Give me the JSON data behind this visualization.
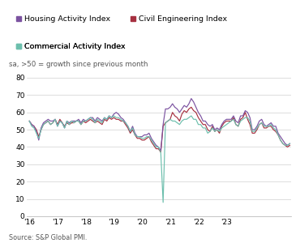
{
  "title": "",
  "subtitle": "sa, >50 = growth since previous month",
  "source": "Source: S&P Global PMI.",
  "legend": [
    {
      "label": "Housing Activity Index",
      "color": "#7B52A0"
    },
    {
      "label": "Civil Engineering Index",
      "color": "#A63040"
    },
    {
      "label": "Commercial Activity Index",
      "color": "#6DBFAD"
    }
  ],
  "ylim": [
    0,
    80
  ],
  "yticks": [
    0,
    10,
    20,
    30,
    40,
    50,
    60,
    70,
    80
  ],
  "xtick_labels": [
    "'16",
    "'17",
    "'18",
    "'19",
    "'20",
    "'21",
    "'22",
    "'23"
  ],
  "housing": [
    55,
    53,
    52,
    49,
    44,
    51,
    54,
    55,
    56,
    55,
    55,
    56,
    52,
    55,
    54,
    51,
    55,
    54,
    55,
    55,
    55,
    56,
    54,
    56,
    55,
    56,
    57,
    57,
    55,
    57,
    56,
    55,
    57,
    56,
    58,
    57,
    59,
    60,
    59,
    57,
    56,
    54,
    52,
    49,
    52,
    48,
    46,
    46,
    46,
    47,
    47,
    48,
    45,
    43,
    41,
    40,
    38,
    53,
    62,
    62,
    63,
    65,
    63,
    62,
    60,
    62,
    64,
    63,
    65,
    68,
    66,
    63,
    60,
    58,
    55,
    55,
    53,
    52,
    53,
    50,
    51,
    50,
    53,
    55,
    56,
    56,
    56,
    58,
    55,
    54,
    58,
    58,
    61,
    60,
    57,
    50,
    50,
    52,
    55,
    56,
    53,
    52,
    53,
    54,
    52,
    52,
    48,
    46,
    44,
    42,
    41,
    42
  ],
  "civil": [
    55,
    53,
    52,
    50,
    46,
    50,
    53,
    54,
    55,
    53,
    54,
    56,
    53,
    56,
    54,
    52,
    54,
    53,
    54,
    54,
    55,
    55,
    53,
    55,
    54,
    55,
    56,
    55,
    54,
    55,
    54,
    53,
    56,
    55,
    57,
    56,
    57,
    56,
    56,
    55,
    55,
    53,
    51,
    48,
    50,
    47,
    45,
    45,
    44,
    44,
    45,
    46,
    43,
    41,
    39,
    39,
    37,
    52,
    54,
    55,
    56,
    60,
    58,
    57,
    55,
    59,
    61,
    60,
    62,
    63,
    61,
    60,
    57,
    55,
    53,
    53,
    50,
    49,
    52,
    49,
    50,
    48,
    52,
    54,
    55,
    55,
    55,
    57,
    53,
    52,
    56,
    57,
    60,
    56,
    53,
    48,
    48,
    50,
    53,
    54,
    51,
    51,
    52,
    52,
    50,
    49,
    47,
    44,
    42,
    41,
    40,
    41
  ],
  "commercial": [
    55,
    52,
    51,
    48,
    45,
    50,
    53,
    54,
    55,
    53,
    54,
    56,
    52,
    55,
    54,
    51,
    55,
    53,
    55,
    54,
    55,
    55,
    53,
    55,
    55,
    56,
    57,
    56,
    54,
    56,
    55,
    54,
    57,
    56,
    58,
    57,
    58,
    57,
    57,
    56,
    55,
    54,
    52,
    49,
    51,
    47,
    46,
    46,
    45,
    45,
    46,
    46,
    44,
    42,
    40,
    40,
    37,
    8,
    54,
    55,
    56,
    55,
    55,
    54,
    53,
    55,
    56,
    56,
    57,
    58,
    56,
    56,
    53,
    53,
    51,
    51,
    48,
    49,
    51,
    49,
    50,
    49,
    51,
    52,
    53,
    54,
    55,
    56,
    53,
    52,
    55,
    56,
    57,
    57,
    55,
    49,
    49,
    51,
    53,
    54,
    52,
    52,
    52,
    53,
    51,
    50,
    47,
    44,
    42,
    41,
    41,
    42
  ],
  "x_tick_positions": [
    0,
    12,
    24,
    36,
    48,
    60,
    72,
    84
  ]
}
